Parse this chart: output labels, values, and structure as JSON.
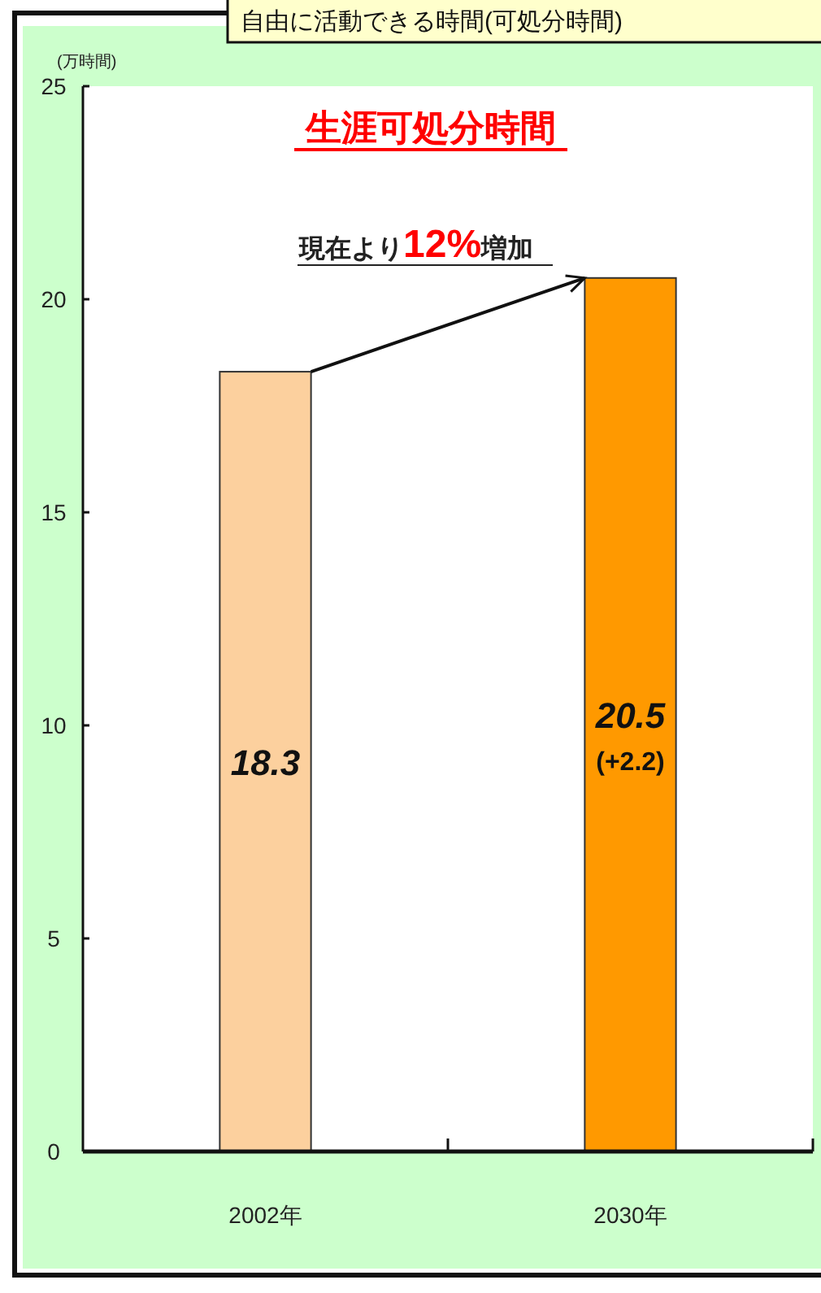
{
  "chart_data": {
    "type": "bar",
    "title": "生涯可処分時間",
    "subtitle": "自由に活動できる時間(可処分時間)",
    "ylabel": "(万時間)",
    "categories": [
      "2002年",
      "2030年"
    ],
    "values": [
      18.3,
      20.5
    ],
    "colors": [
      "#fcd09e",
      "#ff9900"
    ],
    "ylim": [
      0,
      25
    ],
    "yticks": [
      0,
      5,
      10,
      15,
      20,
      25
    ],
    "data_labels": true,
    "annotations": [
      "現在より12%増加",
      "(+2.2)"
    ]
  }
}
